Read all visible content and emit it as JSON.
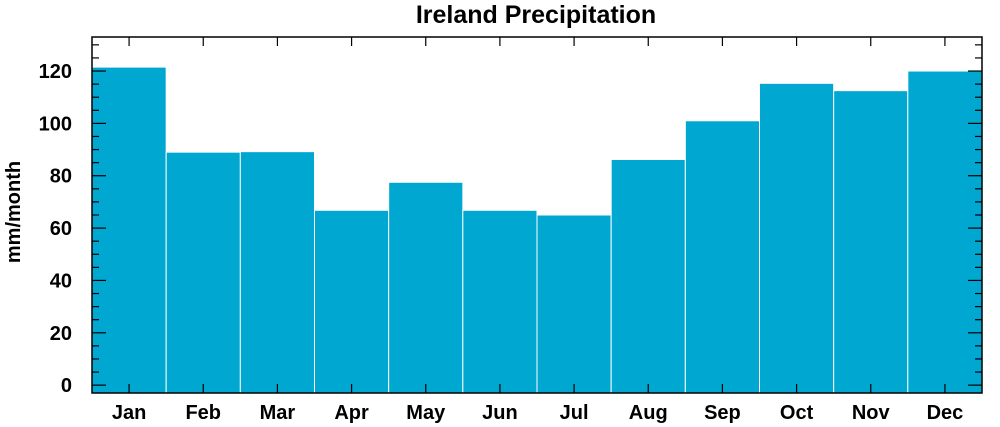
{
  "chart_data": {
    "type": "bar",
    "title": "Ireland Precipitation",
    "xlabel": "",
    "ylabel": "mm/month",
    "categories": [
      "Jan",
      "Feb",
      "Mar",
      "Apr",
      "May",
      "Jun",
      "Jul",
      "Aug",
      "Sep",
      "Oct",
      "Nov",
      "Dec"
    ],
    "values": [
      121.5,
      89,
      89.2,
      66.8,
      77.5,
      66.8,
      65,
      86.2,
      101,
      115.3,
      112.5,
      120
    ],
    "ylim": [
      -3,
      133
    ],
    "yticks": [
      0,
      20,
      40,
      60,
      80,
      100,
      120
    ],
    "bar_color": "#00a7d1",
    "grid": false,
    "legend": "none"
  }
}
